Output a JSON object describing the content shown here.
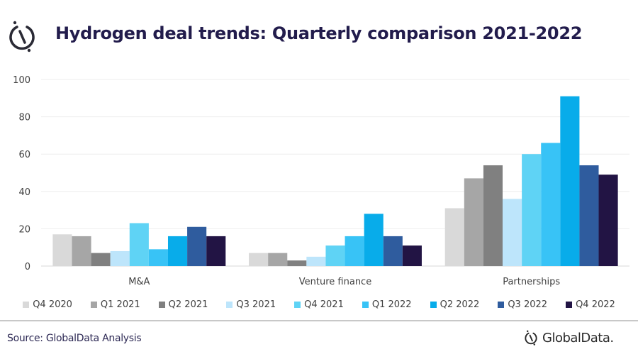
{
  "header": {
    "title": "Hydrogen deal trends: Quarterly comparison 2021-2022",
    "logo_icon": "globaldata-mark-icon"
  },
  "footer": {
    "source": "Source: GlobalData Analysis",
    "brand": "GlobalData."
  },
  "chart_data": {
    "type": "bar",
    "title": "Hydrogen deal trends: Quarterly comparison 2021-2022",
    "xlabel": "",
    "ylabel": "",
    "ylim": [
      0,
      100
    ],
    "yticks": [
      0,
      20,
      40,
      60,
      80,
      100
    ],
    "grid": true,
    "legend_position": "bottom",
    "categories": [
      "M&A",
      "Venture finance",
      "Partnerships"
    ],
    "series": [
      {
        "name": "Q4 2020",
        "color": "#d9d9d9",
        "values": [
          17,
          7,
          31
        ]
      },
      {
        "name": "Q1 2021",
        "color": "#a6a6a6",
        "values": [
          16,
          7,
          47
        ]
      },
      {
        "name": "Q2 2021",
        "color": "#808080",
        "values": [
          7,
          3,
          54
        ]
      },
      {
        "name": "Q3 2021",
        "color": "#bde5fb",
        "values": [
          8,
          5,
          36
        ]
      },
      {
        "name": "Q4 2021",
        "color": "#5fd3f5",
        "values": [
          23,
          11,
          60
        ]
      },
      {
        "name": "Q1 2022",
        "color": "#38c3f6",
        "values": [
          9,
          16,
          66
        ]
      },
      {
        "name": "Q2 2022",
        "color": "#08acea",
        "values": [
          16,
          28,
          91
        ]
      },
      {
        "name": "Q3 2022",
        "color": "#2f5c9e",
        "values": [
          21,
          16,
          54
        ]
      },
      {
        "name": "Q4 2022",
        "color": "#221444",
        "values": [
          16,
          11,
          49
        ]
      }
    ]
  }
}
